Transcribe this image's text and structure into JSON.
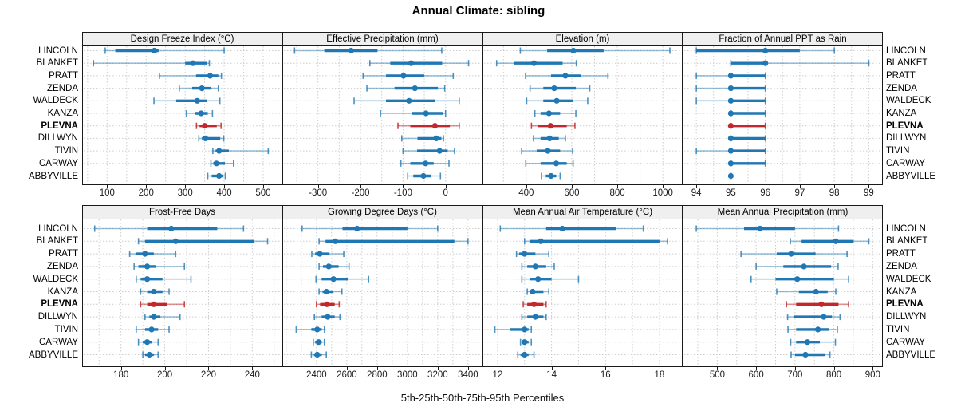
{
  "title": "Annual Climate: sibling",
  "footer": "5th-25th-50th-75th-95th Percentiles",
  "chart_data": {
    "type": "scatter",
    "subtype": "percentile-interval-trellis",
    "title": "Annual Climate: sibling",
    "xlabel": "5th-25th-50th-75th-95th Percentiles",
    "grid": true,
    "legend_position": "none",
    "percentiles": [
      5,
      25,
      50,
      75,
      95
    ],
    "sites": [
      "LINCOLN",
      "BLANKET",
      "PRATT",
      "ZENDA",
      "WALDECK",
      "KANZA",
      "PLEVNA",
      "DILLWYN",
      "TIVIN",
      "CARWAY",
      "ABBYVILLE"
    ],
    "highlighted_site": "PLEVNA",
    "colors": {
      "series": "#1F77B4",
      "highlight": "#C1272D",
      "whisker_series": "rgba(31,119,180,0.45)",
      "whisker_highlight": "rgba(193,39,45,0.5)",
      "cap_series": "rgba(31,119,180,0.8)",
      "cap_highlight": "rgba(193,39,45,0.85)",
      "gridline": "#CCCCCC",
      "strip_bg": "#EFEFEF",
      "border": "#1A1A1A"
    },
    "panels": [
      {
        "title": "Design Freeze Index (°C)",
        "grid_row": 0,
        "grid_col": 0,
        "xlim": [
          40,
          545
        ],
        "ticks": [
          100,
          200,
          300,
          400,
          500
        ],
        "minor_step": 50,
        "values": [
          [
            95,
            121,
            221,
            232,
            400
          ],
          [
            65,
            300,
            320,
            355,
            362
          ],
          [
            234,
            328,
            364,
            385,
            393
          ],
          [
            285,
            318,
            343,
            365,
            385
          ],
          [
            220,
            277,
            331,
            355,
            389
          ],
          [
            303,
            325,
            341,
            358,
            370
          ],
          [
            329,
            337,
            350,
            381,
            392
          ],
          [
            335,
            343,
            352,
            390,
            399
          ],
          [
            371,
            378,
            387,
            412,
            513
          ],
          [
            366,
            372,
            380,
            402,
            424
          ],
          [
            358,
            368,
            387,
            398,
            403
          ]
        ]
      },
      {
        "title": "Effective Precipitation (mm)",
        "grid_row": 0,
        "grid_col": 1,
        "xlim": [
          -380,
          83
        ],
        "ticks": [
          -300,
          -200,
          -100,
          0
        ],
        "minor_step": 50,
        "values": [
          [
            -355,
            -285,
            -222,
            -160,
            -9
          ],
          [
            -178,
            -130,
            -81,
            -8,
            54
          ],
          [
            -194,
            -140,
            -99,
            -50,
            18
          ],
          [
            -185,
            -120,
            -72,
            -18,
            -2
          ],
          [
            -215,
            -140,
            -86,
            -25,
            32
          ],
          [
            -153,
            -80,
            -46,
            -6,
            0
          ],
          [
            -112,
            -83,
            -25,
            10,
            32
          ],
          [
            -103,
            -66,
            -22,
            -10,
            -5
          ],
          [
            -100,
            -67,
            -14,
            5,
            21
          ],
          [
            -105,
            -83,
            -47,
            -28,
            8
          ],
          [
            -89,
            -76,
            -52,
            -34,
            -12
          ]
        ]
      },
      {
        "title": "Elevation (m)",
        "grid_row": 0,
        "grid_col": 2,
        "xlim": [
          215,
          1080
        ],
        "ticks": [
          400,
          600,
          800,
          1000
        ],
        "minor_step": 100,
        "values": [
          [
            374,
            492,
            607,
            740,
            1031
          ],
          [
            270,
            348,
            434,
            560,
            620
          ],
          [
            397,
            509,
            572,
            641,
            759
          ],
          [
            417,
            475,
            523,
            618,
            679
          ],
          [
            402,
            475,
            534,
            606,
            670
          ],
          [
            438,
            463,
            500,
            549,
            618
          ],
          [
            423,
            452,
            507,
            578,
            614
          ],
          [
            432,
            463,
            503,
            543,
            572
          ],
          [
            380,
            446,
            495,
            549,
            604
          ],
          [
            398,
            463,
            532,
            578,
            606
          ],
          [
            467,
            486,
            509,
            532,
            549
          ]
        ]
      },
      {
        "title": "Fraction of Annual PPT as Rain",
        "grid_row": 0,
        "grid_col": 3,
        "xlim": [
          93.65,
          99.36
        ],
        "ticks": [
          94,
          95,
          96,
          97,
          98,
          99
        ],
        "minor_step": 0.5,
        "values": [
          [
            94,
            94,
            96,
            97,
            98
          ],
          [
            95,
            95,
            96,
            96,
            99
          ],
          [
            94,
            95,
            95,
            96,
            96
          ],
          [
            94,
            95,
            95,
            96,
            96
          ],
          [
            94,
            95,
            95,
            96,
            96
          ],
          [
            95,
            95,
            95,
            96,
            96
          ],
          [
            95,
            95,
            95,
            96,
            96
          ],
          [
            95,
            95,
            95,
            96,
            96
          ],
          [
            94,
            95,
            95,
            96,
            96
          ],
          [
            95,
            95,
            95,
            96,
            96
          ],
          [
            95,
            95,
            95,
            95,
            95
          ]
        ]
      },
      {
        "title": "Frost-Free Days",
        "grid_row": 1,
        "grid_col": 0,
        "xlim": [
          163,
          253
        ],
        "ticks": [
          180,
          200,
          220,
          240
        ],
        "minor_step": 10,
        "values": [
          [
            168,
            192,
            203,
            224,
            236
          ],
          [
            188,
            191,
            205,
            241,
            247
          ],
          [
            184,
            187,
            191,
            195,
            205
          ],
          [
            186,
            188,
            192,
            196,
            209
          ],
          [
            187,
            189,
            192,
            199,
            212
          ],
          [
            189,
            192,
            195,
            199,
            202
          ],
          [
            189,
            192,
            195,
            201,
            209
          ],
          [
            191,
            193,
            195,
            198,
            207
          ],
          [
            187,
            191,
            194,
            197,
            202
          ],
          [
            188,
            190,
            192,
            194,
            197
          ],
          [
            190,
            191,
            193,
            195,
            197
          ]
        ]
      },
      {
        "title": "Growing Degree Days (°C)",
        "grid_row": 1,
        "grid_col": 1,
        "xlim": [
          2185,
          3485
        ],
        "ticks": [
          2400,
          2600,
          2800,
          3000,
          3200,
          3400
        ],
        "minor_step": 100,
        "values": [
          [
            2305,
            2572,
            2668,
            3000,
            3200
          ],
          [
            2417,
            2460,
            2524,
            3310,
            3400
          ],
          [
            2369,
            2391,
            2422,
            2486,
            2580
          ],
          [
            2417,
            2443,
            2481,
            2546,
            2615
          ],
          [
            2397,
            2434,
            2512,
            2606,
            2744
          ],
          [
            2417,
            2440,
            2465,
            2512,
            2568
          ],
          [
            2400,
            2424,
            2469,
            2520,
            2550
          ],
          [
            2386,
            2434,
            2474,
            2520,
            2555
          ],
          [
            2266,
            2366,
            2405,
            2435,
            2452
          ],
          [
            2379,
            2391,
            2414,
            2435,
            2452
          ],
          [
            2366,
            2383,
            2405,
            2435,
            2465
          ]
        ]
      },
      {
        "title": "Mean Annual Air Temperature (°C)",
        "grid_row": 1,
        "grid_col": 2,
        "xlim": [
          11.5,
          18.8
        ],
        "ticks": [
          12,
          14,
          16,
          18
        ],
        "minor_step": 1,
        "values": [
          [
            12.1,
            13.8,
            14.4,
            16.4,
            17.4
          ],
          [
            13.0,
            13.2,
            13.6,
            18.0,
            18.3
          ],
          [
            12.7,
            12.8,
            13.0,
            13.4,
            13.9
          ],
          [
            12.9,
            13.1,
            13.4,
            13.8,
            14.1
          ],
          [
            12.9,
            13.2,
            13.5,
            14.0,
            15.0
          ],
          [
            13.1,
            13.2,
            13.3,
            13.7,
            13.9
          ],
          [
            12.95,
            13.1,
            13.35,
            13.7,
            13.8
          ],
          [
            12.9,
            13.1,
            13.4,
            13.7,
            13.8
          ],
          [
            11.9,
            12.45,
            13.0,
            13.15,
            13.25
          ],
          [
            12.85,
            12.9,
            13.0,
            13.15,
            13.25
          ],
          [
            12.75,
            12.85,
            13.0,
            13.15,
            13.35
          ]
        ]
      },
      {
        "title": "Mean Annual Precipitation (mm)",
        "grid_row": 1,
        "grid_col": 3,
        "xlim": [
          415,
          922
        ],
        "ticks": [
          500,
          600,
          700,
          800,
          900
        ],
        "minor_step": 50,
        "values": [
          [
            446,
            569,
            610,
            700,
            812
          ],
          [
            688,
            717,
            805,
            851,
            890
          ],
          [
            561,
            653,
            690,
            753,
            834
          ],
          [
            600,
            670,
            723,
            793,
            811
          ],
          [
            587,
            650,
            706,
            800,
            838
          ],
          [
            653,
            710,
            754,
            784,
            805
          ],
          [
            678,
            703,
            768,
            812,
            838
          ],
          [
            681,
            698,
            774,
            795,
            816
          ],
          [
            682,
            703,
            759,
            787,
            809
          ],
          [
            689,
            703,
            732,
            764,
            804
          ],
          [
            690,
            700,
            727,
            777,
            790
          ]
        ]
      }
    ]
  }
}
